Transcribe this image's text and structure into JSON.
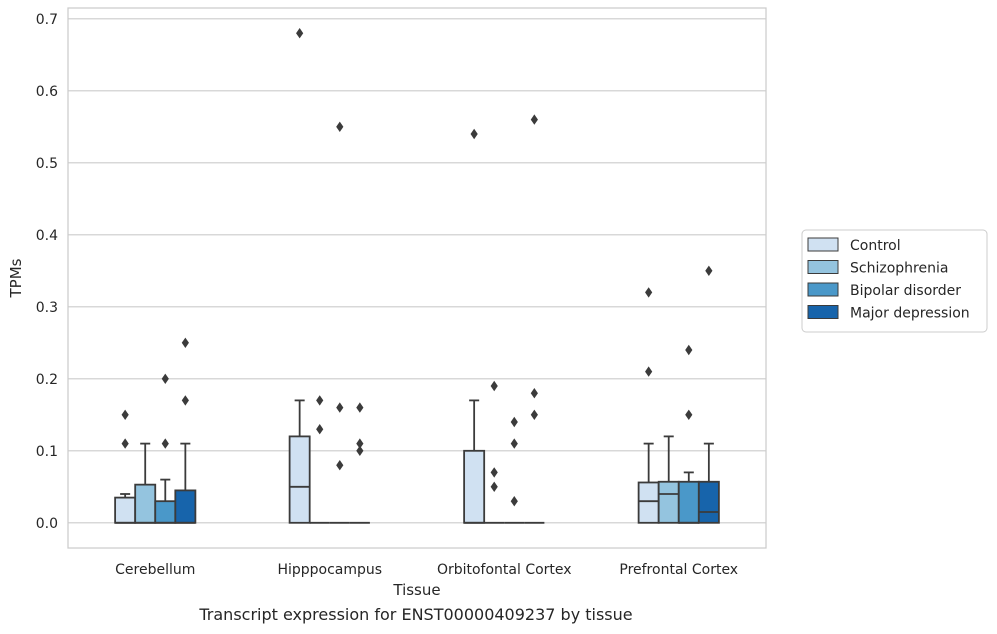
{
  "caption": "Transcript expression for ENST00000409237 by tissue",
  "chart_data": {
    "type": "boxplot",
    "xlabel": "Tissue",
    "ylabel": "TPMs",
    "ylim": [
      -0.035,
      0.715
    ],
    "yticks": [
      0.0,
      0.1,
      0.2,
      0.3,
      0.4,
      0.5,
      0.6,
      0.7
    ],
    "ytick_labels": [
      "0.0",
      "0.1",
      "0.2",
      "0.3",
      "0.4",
      "0.5",
      "0.6",
      "0.7"
    ],
    "grid": true,
    "legend_position": "right",
    "categories": [
      "Cerebellum",
      "Hipppocampus",
      "Orbitofontal Cortex",
      "Prefrontal Cortex"
    ],
    "series": [
      {
        "name": "Control",
        "color": "#d0e1f2",
        "boxes": [
          {
            "q1": 0.0,
            "median": 0.0,
            "q3": 0.035,
            "whisker_low": 0.0,
            "whisker_high": 0.04,
            "outliers": [
              0.11,
              0.15
            ]
          },
          {
            "q1": 0.0,
            "median": 0.05,
            "q3": 0.12,
            "whisker_low": 0.0,
            "whisker_high": 0.17,
            "outliers": [
              0.68
            ]
          },
          {
            "q1": 0.0,
            "median": 0.0,
            "q3": 0.1,
            "whisker_low": 0.0,
            "whisker_high": 0.17,
            "outliers": [
              0.54
            ]
          },
          {
            "q1": 0.0,
            "median": 0.03,
            "q3": 0.056,
            "whisker_low": 0.0,
            "whisker_high": 0.11,
            "outliers": [
              0.21,
              0.32
            ]
          }
        ]
      },
      {
        "name": "Schizophrenia",
        "color": "#94c4df",
        "boxes": [
          {
            "q1": 0.0,
            "median": 0.0,
            "q3": 0.053,
            "whisker_low": 0.0,
            "whisker_high": 0.11,
            "outliers": []
          },
          {
            "q1": 0.0,
            "median": 0.0,
            "q3": 0.0,
            "whisker_low": 0.0,
            "whisker_high": 0.0,
            "outliers": [
              0.13,
              0.17
            ]
          },
          {
            "q1": 0.0,
            "median": 0.0,
            "q3": 0.0,
            "whisker_low": 0.0,
            "whisker_high": 0.0,
            "outliers": [
              0.05,
              0.07,
              0.19
            ]
          },
          {
            "q1": 0.0,
            "median": 0.04,
            "q3": 0.057,
            "whisker_low": 0.0,
            "whisker_high": 0.12,
            "outliers": []
          }
        ]
      },
      {
        "name": "Bipolar disorder",
        "color": "#4a98c9",
        "boxes": [
          {
            "q1": 0.0,
            "median": 0.0,
            "q3": 0.03,
            "whisker_low": 0.0,
            "whisker_high": 0.06,
            "outliers": [
              0.11,
              0.2
            ]
          },
          {
            "q1": 0.0,
            "median": 0.0,
            "q3": 0.0,
            "whisker_low": 0.0,
            "whisker_high": 0.0,
            "outliers": [
              0.08,
              0.16,
              0.55
            ]
          },
          {
            "q1": 0.0,
            "median": 0.0,
            "q3": 0.0,
            "whisker_low": 0.0,
            "whisker_high": 0.0,
            "outliers": [
              0.03,
              0.11,
              0.14
            ]
          },
          {
            "q1": 0.0,
            "median": 0.0,
            "q3": 0.057,
            "whisker_low": 0.0,
            "whisker_high": 0.07,
            "outliers": [
              0.15,
              0.24
            ]
          }
        ]
      },
      {
        "name": "Major depression",
        "color": "#1764ab",
        "boxes": [
          {
            "q1": 0.0,
            "median": 0.0,
            "q3": 0.045,
            "whisker_low": 0.0,
            "whisker_high": 0.11,
            "outliers": [
              0.17,
              0.25
            ]
          },
          {
            "q1": 0.0,
            "median": 0.0,
            "q3": 0.0,
            "whisker_low": 0.0,
            "whisker_high": 0.0,
            "outliers": [
              0.1,
              0.11,
              0.16
            ]
          },
          {
            "q1": 0.0,
            "median": 0.0,
            "q3": 0.0,
            "whisker_low": 0.0,
            "whisker_high": 0.0,
            "outliers": [
              0.15,
              0.18,
              0.56
            ]
          },
          {
            "q1": 0.0,
            "median": 0.015,
            "q3": 0.057,
            "whisker_low": 0.0,
            "whisker_high": 0.11,
            "outliers": [
              0.35
            ]
          }
        ]
      }
    ]
  }
}
